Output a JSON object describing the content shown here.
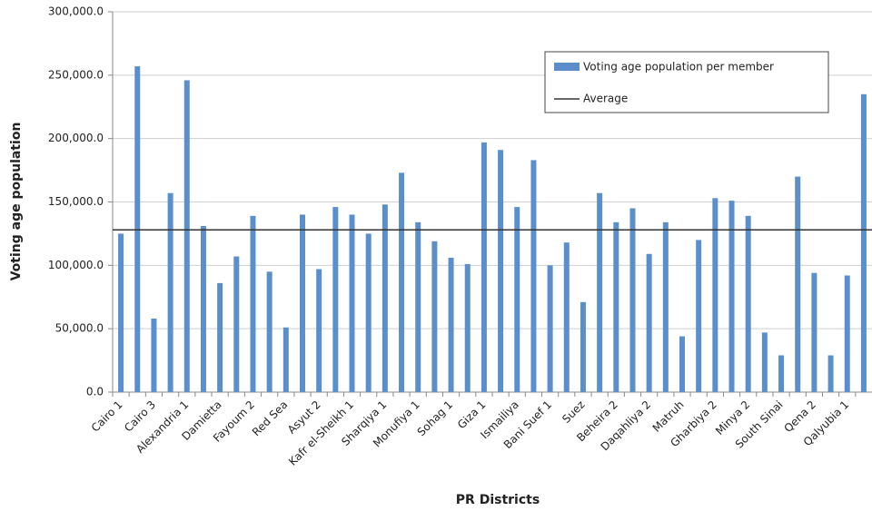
{
  "chart_data": {
    "type": "bar",
    "y_label": "Voting age population",
    "x_label": "PR Districts",
    "categories": [
      "Cairo 1",
      null,
      "Cairo 3",
      null,
      "Alexandria 1",
      null,
      "Damietta",
      null,
      "Fayoum 2",
      null,
      "Red Sea",
      null,
      "Asyut 2",
      null,
      "Kafr el-Sheikh 1",
      null,
      "Sharqiya 1",
      null,
      "Monufiya 1",
      null,
      "Sohag 1",
      null,
      "Giza 1",
      null,
      "Ismailiya",
      null,
      "Bani Suef 1",
      null,
      "Suez",
      null,
      "Beheira 2",
      null,
      "Daqahliya 2",
      null,
      "Matruh",
      null,
      "Gharbiya 2",
      null,
      "Minya 2",
      null,
      "South Sinai",
      null,
      "Qena 2",
      null,
      "Qalyubia 1",
      null
    ],
    "series": [
      {
        "name": "Voting age population per member",
        "color": "#5b8fcc",
        "values": [
          125000,
          257000,
          58000,
          157000,
          246000,
          131000,
          86000,
          107000,
          139000,
          95000,
          51000,
          140000,
          97000,
          146000,
          140000,
          125000,
          148000,
          173000,
          134000,
          119000,
          106000,
          101000,
          197000,
          191000,
          146000,
          183000,
          100000,
          118000,
          71000,
          157000,
          134000,
          145000,
          109000,
          134000,
          44000,
          120000,
          153000,
          151000,
          139000,
          47000,
          29000,
          170000,
          94000,
          29000,
          92000,
          235000
        ]
      }
    ],
    "average": {
      "name": "Average",
      "value": 128000,
      "color": "#333333"
    },
    "ylim": [
      0,
      300000
    ],
    "yticks": [
      {
        "value": 0,
        "label": "0.0"
      },
      {
        "value": 50000,
        "label": "50,000.0"
      },
      {
        "value": 100000,
        "label": "100,000.0"
      },
      {
        "value": 150000,
        "label": "150,000.0"
      },
      {
        "value": 200000,
        "label": "200,000.0"
      },
      {
        "value": 250000,
        "label": "250,000.0"
      },
      {
        "value": 300000,
        "label": "300,000.0"
      }
    ],
    "grid": true
  }
}
